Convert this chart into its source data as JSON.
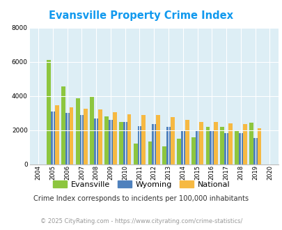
{
  "title": "Evansville Property Crime Index",
  "title_color": "#1199ee",
  "years": [
    2004,
    2005,
    2006,
    2007,
    2008,
    2009,
    2010,
    2011,
    2012,
    2013,
    2014,
    2015,
    2016,
    2017,
    2018,
    2019,
    2020
  ],
  "evansville": [
    0,
    6100,
    4550,
    3850,
    4000,
    2800,
    2500,
    1200,
    1350,
    1050,
    1500,
    1600,
    2200,
    2200,
    1950,
    2450,
    0
  ],
  "wyoming": [
    0,
    3100,
    3000,
    2900,
    2700,
    2600,
    2500,
    2250,
    2350,
    2200,
    2000,
    1950,
    2000,
    1850,
    1850,
    1550,
    0
  ],
  "national": [
    0,
    3450,
    3350,
    3250,
    3200,
    3050,
    2950,
    2900,
    2900,
    2750,
    2600,
    2500,
    2480,
    2420,
    2370,
    2130,
    0
  ],
  "bar_width": 0.28,
  "evansville_color": "#8dc63f",
  "wyoming_color": "#4f81bd",
  "national_color": "#f6b942",
  "plot_bg": "#ddeef5",
  "ylim": [
    0,
    8000
  ],
  "yticks": [
    0,
    2000,
    4000,
    6000,
    8000
  ],
  "grid_color": "#ffffff",
  "subtitle": "Crime Index corresponds to incidents per 100,000 inhabitants",
  "footer": "© 2025 CityRating.com - https://www.cityrating.com/crime-statistics/",
  "subtitle_color": "#333333",
  "footer_color": "#999999",
  "legend_labels": [
    "Evansville",
    "Wyoming",
    "National"
  ]
}
